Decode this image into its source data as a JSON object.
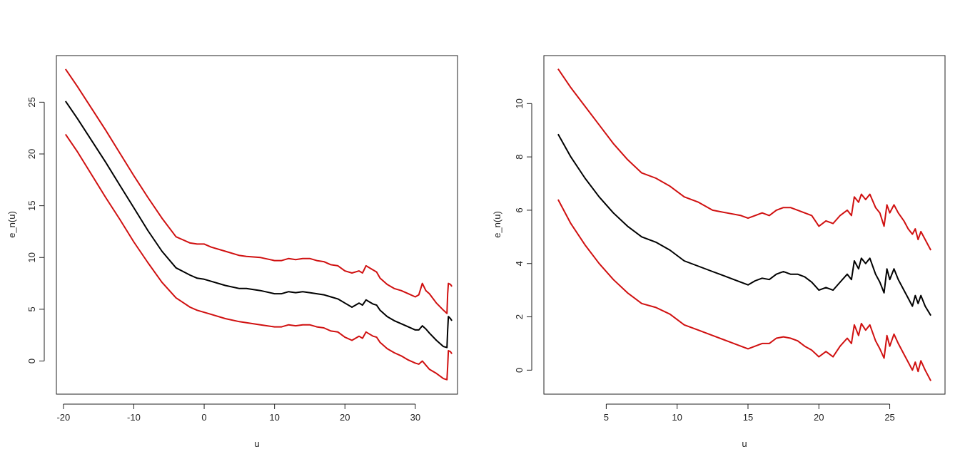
{
  "colors": {
    "center": "#000000",
    "band": "#d01010",
    "axis": "#222222"
  },
  "chart_data": [
    {
      "type": "line",
      "xlabel": "u",
      "ylabel": "e_n(u)",
      "xlim": [
        -21,
        36
      ],
      "ylim": [
        -3.2,
        29.5
      ],
      "xticks": [
        -20,
        -10,
        0,
        10,
        20,
        30
      ],
      "xtick_labels": [
        "-20",
        "-10",
        "0",
        "10",
        "20",
        "30"
      ],
      "yticks": [
        0,
        5,
        10,
        15,
        20,
        25
      ],
      "ytick_labels": [
        "0",
        "5",
        "10",
        "15",
        "20",
        "25"
      ],
      "series": [
        {
          "role": "upper",
          "color": "#d01010",
          "x": [
            -19.7,
            -18,
            -16,
            -14,
            -12,
            -10,
            -8,
            -6,
            -4,
            -2,
            -1,
            0,
            1,
            3,
            5,
            6,
            8,
            10,
            11,
            12,
            13,
            14,
            15,
            16,
            17,
            18,
            19,
            20,
            21,
            22,
            22.5,
            23,
            24,
            24.5,
            25,
            26,
            27,
            28,
            29,
            30,
            30.5,
            31,
            31.5,
            32,
            33,
            34,
            34.5,
            34.6,
            34.7,
            35,
            35.2
          ],
          "y": [
            28.2,
            26.5,
            24.4,
            22.3,
            20.1,
            17.9,
            15.8,
            13.8,
            12.0,
            11.4,
            11.3,
            11.3,
            11.0,
            10.6,
            10.2,
            10.1,
            10.0,
            9.7,
            9.7,
            9.9,
            9.8,
            9.9,
            9.9,
            9.7,
            9.6,
            9.3,
            9.2,
            8.7,
            8.5,
            8.7,
            8.5,
            9.2,
            8.8,
            8.6,
            8.0,
            7.4,
            7.0,
            6.8,
            6.5,
            6.2,
            6.4,
            7.5,
            6.8,
            6.5,
            5.6,
            4.9,
            4.6,
            6.5,
            7.5,
            7.4,
            7.2
          ]
        },
        {
          "role": "estimate",
          "color": "#000000",
          "x": [
            -19.7,
            -18,
            -16,
            -14,
            -12,
            -10,
            -8,
            -6,
            -4,
            -2,
            -1,
            0,
            1,
            3,
            5,
            6,
            8,
            10,
            11,
            12,
            13,
            14,
            15,
            16,
            17,
            18,
            19,
            20,
            21,
            22,
            22.5,
            23,
            24,
            24.5,
            25,
            26,
            27,
            28,
            29,
            30,
            30.5,
            31,
            31.5,
            32,
            33,
            34,
            34.5,
            34.6,
            34.7,
            35,
            35.2
          ],
          "y": [
            25.1,
            23.4,
            21.3,
            19.2,
            17.0,
            14.8,
            12.6,
            10.6,
            9.0,
            8.3,
            8.0,
            7.9,
            7.7,
            7.3,
            7.0,
            7.0,
            6.8,
            6.5,
            6.5,
            6.7,
            6.6,
            6.7,
            6.6,
            6.5,
            6.4,
            6.2,
            6.0,
            5.6,
            5.2,
            5.6,
            5.4,
            5.9,
            5.5,
            5.4,
            4.9,
            4.3,
            3.9,
            3.6,
            3.3,
            3.0,
            3.0,
            3.4,
            3.1,
            2.7,
            2.0,
            1.4,
            1.3,
            3.0,
            4.3,
            4.1,
            3.9
          ]
        },
        {
          "role": "lower",
          "color": "#d01010",
          "x": [
            -19.7,
            -18,
            -16,
            -14,
            -12,
            -10,
            -8,
            -6,
            -4,
            -2,
            -1,
            0,
            1,
            3,
            5,
            6,
            8,
            10,
            11,
            12,
            13,
            14,
            15,
            16,
            17,
            18,
            19,
            20,
            21,
            22,
            22.5,
            23,
            24,
            24.5,
            25,
            26,
            27,
            28,
            29,
            30,
            30.5,
            31,
            31.5,
            32,
            33,
            34,
            34.5,
            34.6,
            34.7,
            35,
            35.2
          ],
          "y": [
            21.9,
            20.2,
            18.0,
            15.8,
            13.7,
            11.5,
            9.5,
            7.6,
            6.1,
            5.2,
            4.9,
            4.7,
            4.5,
            4.1,
            3.8,
            3.7,
            3.5,
            3.3,
            3.3,
            3.5,
            3.4,
            3.5,
            3.5,
            3.3,
            3.2,
            2.9,
            2.8,
            2.3,
            2.0,
            2.4,
            2.2,
            2.8,
            2.4,
            2.3,
            1.8,
            1.2,
            0.8,
            0.5,
            0.1,
            -0.2,
            -0.3,
            0.0,
            -0.4,
            -0.8,
            -1.2,
            -1.7,
            -1.8,
            -0.5,
            1.0,
            0.9,
            0.7
          ]
        }
      ]
    },
    {
      "type": "line",
      "xlabel": "u",
      "ylabel": "e_n(u)",
      "xlim": [
        0.6,
        28.9
      ],
      "ylim": [
        -0.9,
        11.8
      ],
      "xticks": [
        5,
        10,
        15,
        20,
        25
      ],
      "xtick_labels": [
        "5",
        "10",
        "15",
        "20",
        "25"
      ],
      "yticks": [
        0,
        2,
        4,
        6,
        8,
        10
      ],
      "ytick_labels": [
        "0",
        "2",
        "4",
        "6",
        "8",
        "10"
      ],
      "series": [
        {
          "role": "upper",
          "color": "#d01010",
          "x": [
            1.6,
            2.5,
            3.5,
            4.5,
            5.5,
            6.5,
            7.5,
            8.5,
            9.5,
            10.5,
            11.5,
            12.5,
            13.5,
            14.5,
            15,
            15.5,
            16,
            16.5,
            17,
            17.5,
            18,
            18.5,
            19,
            19.5,
            20,
            20.5,
            21,
            21.5,
            22,
            22.3,
            22.5,
            22.8,
            23,
            23.3,
            23.6,
            24,
            24.3,
            24.6,
            24.8,
            25,
            25.3,
            25.6,
            26,
            26.3,
            26.6,
            26.8,
            27,
            27.2,
            27.5,
            27.9
          ],
          "y": [
            11.3,
            10.6,
            9.9,
            9.2,
            8.5,
            7.9,
            7.4,
            7.2,
            6.9,
            6.5,
            6.3,
            6.0,
            5.9,
            5.8,
            5.7,
            5.8,
            5.9,
            5.8,
            6.0,
            6.1,
            6.1,
            6.0,
            5.9,
            5.8,
            5.4,
            5.6,
            5.5,
            5.8,
            6.0,
            5.8,
            6.5,
            6.3,
            6.6,
            6.4,
            6.6,
            6.1,
            5.9,
            5.4,
            6.2,
            5.9,
            6.2,
            5.9,
            5.6,
            5.3,
            5.1,
            5.3,
            4.9,
            5.2,
            4.9,
            4.5
          ]
        },
        {
          "role": "estimate",
          "color": "#000000",
          "x": [
            1.6,
            2.5,
            3.5,
            4.5,
            5.5,
            6.5,
            7.5,
            8.5,
            9.5,
            10.5,
            11.5,
            12.5,
            13.5,
            14.5,
            15,
            15.5,
            16,
            16.5,
            17,
            17.5,
            18,
            18.5,
            19,
            19.5,
            20,
            20.5,
            21,
            21.5,
            22,
            22.3,
            22.5,
            22.8,
            23,
            23.3,
            23.6,
            24,
            24.3,
            24.6,
            24.8,
            25,
            25.3,
            25.6,
            26,
            26.3,
            26.6,
            26.8,
            27,
            27.2,
            27.5,
            27.9
          ],
          "y": [
            8.85,
            8.0,
            7.2,
            6.5,
            5.9,
            5.4,
            5.0,
            4.8,
            4.5,
            4.1,
            3.9,
            3.7,
            3.5,
            3.3,
            3.2,
            3.35,
            3.45,
            3.4,
            3.6,
            3.7,
            3.6,
            3.6,
            3.5,
            3.3,
            3.0,
            3.1,
            3.0,
            3.3,
            3.6,
            3.4,
            4.1,
            3.8,
            4.2,
            4.0,
            4.2,
            3.6,
            3.3,
            2.9,
            3.8,
            3.4,
            3.8,
            3.4,
            3.0,
            2.7,
            2.4,
            2.8,
            2.5,
            2.8,
            2.4,
            2.05
          ]
        },
        {
          "role": "lower",
          "color": "#d01010",
          "x": [
            1.6,
            2.5,
            3.5,
            4.5,
            5.5,
            6.5,
            7.5,
            8.5,
            9.5,
            10.5,
            11.5,
            12.5,
            13.5,
            14.5,
            15,
            15.5,
            16,
            16.5,
            17,
            17.5,
            18,
            18.5,
            19,
            19.5,
            20,
            20.5,
            21,
            21.5,
            22,
            22.3,
            22.5,
            22.8,
            23,
            23.3,
            23.6,
            24,
            24.3,
            24.6,
            24.8,
            25,
            25.3,
            25.6,
            26,
            26.3,
            26.6,
            26.8,
            27,
            27.2,
            27.5,
            27.9
          ],
          "y": [
            6.4,
            5.5,
            4.7,
            4.0,
            3.4,
            2.9,
            2.5,
            2.35,
            2.1,
            1.7,
            1.5,
            1.3,
            1.1,
            0.9,
            0.8,
            0.9,
            1.0,
            1.0,
            1.2,
            1.25,
            1.2,
            1.1,
            0.9,
            0.75,
            0.5,
            0.7,
            0.5,
            0.9,
            1.2,
            1.0,
            1.7,
            1.3,
            1.75,
            1.5,
            1.7,
            1.1,
            0.8,
            0.45,
            1.3,
            0.9,
            1.35,
            1.0,
            0.6,
            0.3,
            0.0,
            0.3,
            -0.05,
            0.35,
            0.0,
            -0.4
          ]
        }
      ]
    }
  ]
}
